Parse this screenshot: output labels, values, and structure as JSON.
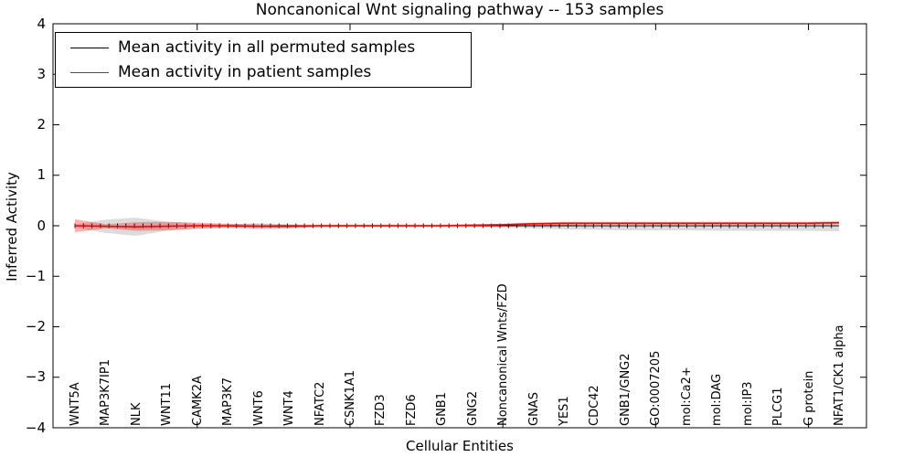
{
  "chart_data": {
    "type": "line",
    "title": "Noncanonical Wnt signaling pathway -- 153 samples",
    "xlabel": "Cellular Entities",
    "ylabel": "Inferred Activity",
    "ylim": [
      -4,
      4
    ],
    "y_ticks": [
      4,
      3,
      2,
      1,
      0,
      -1,
      -2,
      -3,
      -4
    ],
    "x_major_tick_indices": [
      4,
      9,
      14,
      19,
      24
    ],
    "grid": false,
    "legend_position": "upper left",
    "categories": [
      "WNT5A",
      "MAP3K7IP1",
      "NLK",
      "WNT11",
      "CAMK2A",
      "MAP3K7",
      "WNT6",
      "WNT4",
      "NFATC2",
      "CSNK1A1",
      "FZD3",
      "FZD6",
      "GNB1",
      "GNG2",
      "Noncanonical Wnts/FZD",
      "GNAS",
      "YES1",
      "CDC42",
      "GNB1/GNG2",
      "GO:0007205",
      "mol:Ca2+",
      "mol:DAG",
      "mol:IP3",
      "PLCG1",
      "G protein",
      "NFAT1/CK1 alpha"
    ],
    "series": [
      {
        "name": "Mean activity in all permuted samples",
        "color": "#000000",
        "values": [
          0,
          -0.01,
          -0.02,
          -0.01,
          0,
          0,
          -0.01,
          0,
          0,
          0,
          0,
          0,
          0,
          0,
          0,
          0,
          0,
          0,
          0,
          0,
          0,
          0,
          0,
          0,
          0,
          0
        ],
        "band_upper": [
          0.03,
          0.12,
          0.16,
          0.08,
          0.04,
          0.03,
          0.05,
          0.03,
          0.02,
          0.02,
          0.02,
          0.02,
          0.02,
          0.02,
          0.02,
          0.02,
          0.02,
          0.01,
          0.01,
          0.01,
          0.01,
          0.01,
          0.01,
          0.01,
          0.01,
          0.01
        ],
        "band_lower": [
          -0.04,
          -0.14,
          -0.2,
          -0.1,
          -0.05,
          -0.04,
          -0.07,
          -0.05,
          -0.03,
          -0.03,
          -0.03,
          -0.03,
          -0.03,
          -0.03,
          -0.04,
          -0.05,
          -0.07,
          -0.08,
          -0.09,
          -0.09,
          -0.09,
          -0.1,
          -0.1,
          -0.1,
          -0.1,
          -0.11
        ],
        "band_color": "rgba(130,130,130,0.28)"
      },
      {
        "name": "Mean activity in patient samples",
        "color": "#ff0000",
        "values": [
          0,
          -0.01,
          -0.02,
          -0.01,
          0,
          0,
          -0.01,
          -0.01,
          0,
          0,
          0,
          0,
          0,
          0.01,
          0.02,
          0.04,
          0.05,
          0.05,
          0.05,
          0.05,
          0.05,
          0.05,
          0.05,
          0.05,
          0.05,
          0.06
        ],
        "band_upper": [
          0.13,
          0.03,
          0.07,
          0.08,
          0.06,
          0.04,
          0.03,
          0.02,
          0.02,
          0.02,
          0.02,
          0.02,
          0.02,
          0.03,
          0.04,
          0.06,
          0.08,
          0.08,
          0.08,
          0.08,
          0.08,
          0.08,
          0.08,
          0.08,
          0.08,
          0.09
        ],
        "band_lower": [
          -0.13,
          -0.05,
          -0.1,
          -0.09,
          -0.06,
          -0.04,
          -0.04,
          -0.04,
          -0.03,
          -0.02,
          -0.02,
          -0.02,
          -0.02,
          -0.01,
          -0.01,
          0,
          0.01,
          0.02,
          0.02,
          0.02,
          0.02,
          0.02,
          0.02,
          0.02,
          0.02,
          0.03
        ],
        "band_color": "rgba(255,0,0,0.30)"
      }
    ]
  },
  "legend": {
    "items": [
      {
        "label": "Mean activity in all permuted samples",
        "color": "#000000"
      },
      {
        "label": "Mean activity in patient samples",
        "color": "#ff0000"
      }
    ]
  }
}
